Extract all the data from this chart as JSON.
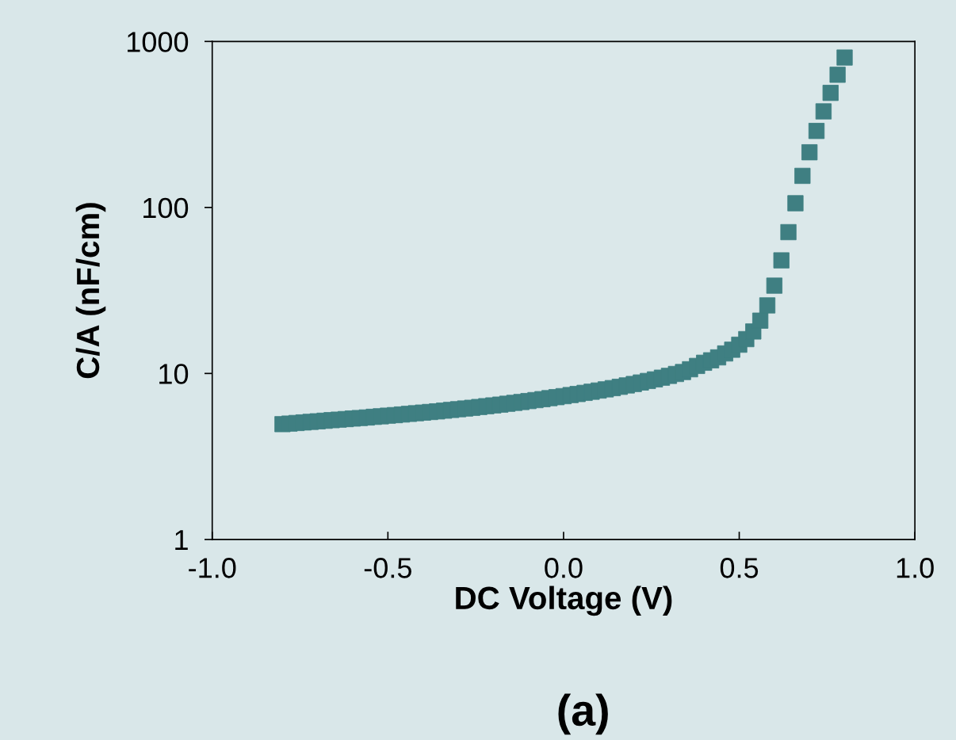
{
  "chart_data": {
    "type": "scatter",
    "xlabel": "DC Voltage (V)",
    "ylabel": "C/A (nF/cm)",
    "log": "y",
    "marker": "square",
    "grid": false,
    "annotations": [
      "(a)"
    ],
    "xlim": [
      -1.0,
      1.0
    ],
    "xticks": [
      {
        "value": -1.0,
        "label": "-1.0"
      },
      {
        "value": -0.5,
        "label": "-0.5"
      },
      {
        "value": 0.0,
        "label": "0.0"
      },
      {
        "value": 0.5,
        "label": "0.5"
      },
      {
        "value": 1.0,
        "label": "1.0"
      }
    ],
    "ylim": [
      1,
      1000
    ],
    "yticks": [
      1,
      10,
      100,
      1000
    ],
    "series": [
      {
        "color": "#3f7f82",
        "x": [
          -0.8,
          -0.78,
          -0.76,
          -0.74,
          -0.72,
          -0.7,
          -0.68,
          -0.66,
          -0.64,
          -0.62,
          -0.6,
          -0.58,
          -0.56,
          -0.54,
          -0.52,
          -0.5,
          -0.48,
          -0.46,
          -0.44,
          -0.42,
          -0.4,
          -0.38,
          -0.36,
          -0.34,
          -0.32,
          -0.3,
          -0.28,
          -0.26,
          -0.24,
          -0.22,
          -0.2,
          -0.18,
          -0.16,
          -0.14,
          -0.12,
          -0.1,
          -0.08,
          -0.06,
          -0.04,
          -0.02,
          0.0,
          0.02,
          0.04,
          0.06,
          0.08,
          0.1,
          0.12,
          0.14,
          0.16,
          0.18,
          0.2,
          0.22,
          0.24,
          0.26,
          0.28,
          0.3,
          0.32,
          0.34,
          0.36,
          0.38,
          0.4,
          0.42,
          0.44,
          0.46,
          0.48,
          0.5,
          0.52,
          0.54,
          0.56,
          0.58,
          0.6,
          0.62,
          0.64,
          0.66,
          0.68,
          0.7,
          0.72,
          0.74,
          0.76,
          0.78,
          0.8
        ],
        "values": [
          4.95,
          4.99,
          5.03,
          5.07,
          5.11,
          5.15,
          5.19,
          5.23,
          5.27,
          5.31,
          5.35,
          5.39,
          5.43,
          5.48,
          5.52,
          5.57,
          5.61,
          5.66,
          5.71,
          5.76,
          5.81,
          5.86,
          5.91,
          5.97,
          6.03,
          6.09,
          6.15,
          6.21,
          6.28,
          6.35,
          6.42,
          6.49,
          6.57,
          6.65,
          6.73,
          6.82,
          6.91,
          7.0,
          7.1,
          7.2,
          7.3,
          7.41,
          7.52,
          7.64,
          7.76,
          7.89,
          8.02,
          8.16,
          8.31,
          8.47,
          8.64,
          8.82,
          9.01,
          9.21,
          9.43,
          9.67,
          9.93,
          10.2,
          10.6,
          11.1,
          11.6,
          12.0,
          12.5,
          13.2,
          13.9,
          14.9,
          16.1,
          17.9,
          20.8,
          25.7,
          33.8,
          48,
          71,
          106,
          155,
          215,
          289,
          379,
          490,
          630,
          800
        ]
      }
    ]
  }
}
